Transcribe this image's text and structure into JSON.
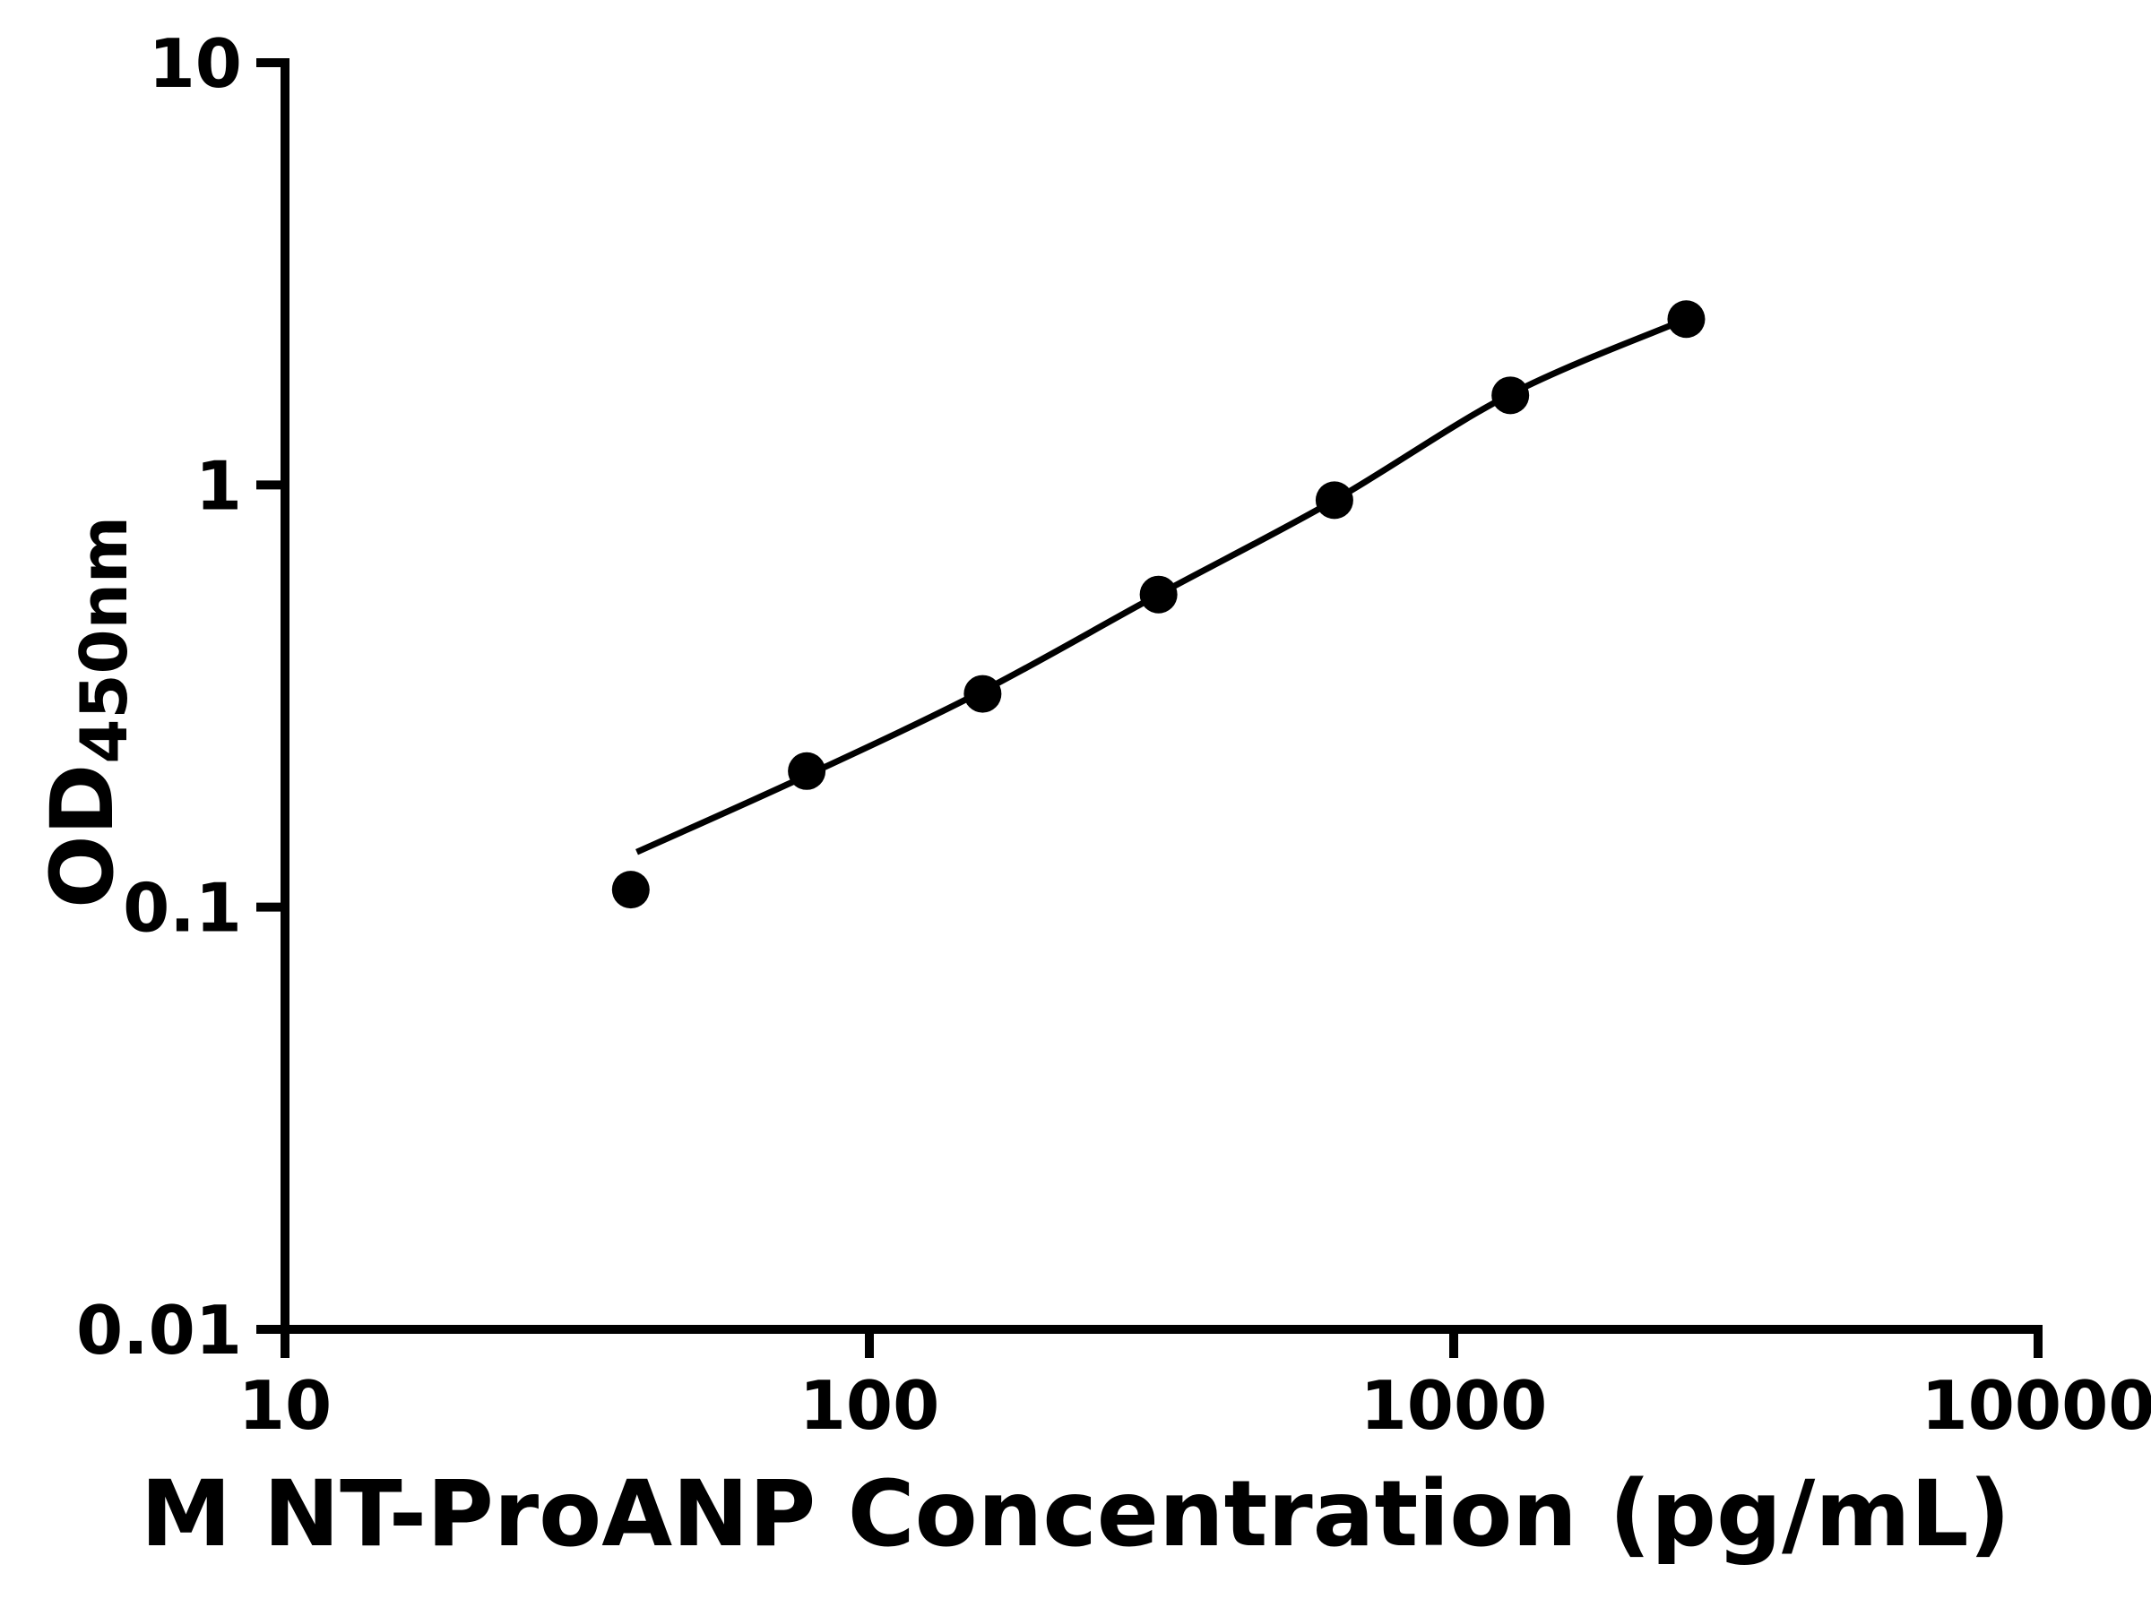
{
  "chart_data": {
    "type": "scatter",
    "title": "",
    "xlabel": "M NT-ProANP Concentration (pg/mL)",
    "ylabel_main": "OD",
    "ylabel_sub": "450nm",
    "x_scale": "log",
    "y_scale": "log",
    "xlim": [
      10,
      10000
    ],
    "ylim": [
      0.01,
      10
    ],
    "x_ticks": [
      10,
      100,
      1000,
      10000
    ],
    "x_tick_labels": [
      "10",
      "100",
      "1000",
      "10000"
    ],
    "y_ticks": [
      0.01,
      0.1,
      1,
      10
    ],
    "y_tick_labels": [
      "0.01",
      "0.1",
      "1",
      "10"
    ],
    "grid": false,
    "legend": false,
    "background": "#ffffff",
    "axis_color": "#000000",
    "marker_color": "#000000",
    "line_color": "#000000",
    "series": [
      {
        "name": "standard-curve-points",
        "x": [
          39.06,
          78.13,
          156.25,
          312.5,
          625,
          1250,
          2500
        ],
        "od": [
          0.11,
          0.21,
          0.32,
          0.55,
          0.92,
          1.63,
          2.47
        ]
      }
    ],
    "fit_curve": {
      "x": [
        40,
        78.13,
        156.25,
        312.5,
        625,
        1250,
        2500
      ],
      "od": [
        0.135,
        0.205,
        0.325,
        0.55,
        0.92,
        1.64,
        2.47
      ]
    }
  }
}
